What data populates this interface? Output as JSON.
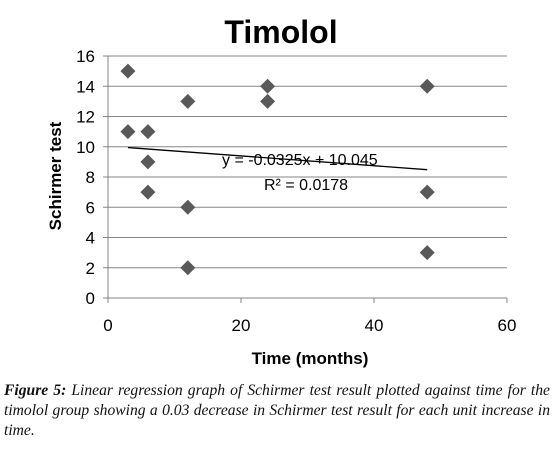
{
  "chart_data": {
    "type": "scatter",
    "title": "Timolol",
    "xlabel": "Time (months)",
    "ylabel": "Schirmer  test",
    "xlim": [
      0,
      60
    ],
    "ylim": [
      0,
      16
    ],
    "x_ticks": [
      0,
      20,
      40,
      60
    ],
    "y_ticks": [
      0,
      2,
      4,
      6,
      8,
      10,
      12,
      14,
      16
    ],
    "grid": "horizontal",
    "legend": "none",
    "marker": "diamond",
    "marker_color": "#595959",
    "x": [
      3,
      3,
      6,
      6,
      6,
      12,
      12,
      12,
      24,
      24,
      48,
      48,
      48
    ],
    "y": [
      15,
      11,
      11,
      9,
      7,
      13,
      6,
      2,
      14,
      13,
      14,
      7,
      3
    ],
    "trendline": {
      "slope": -0.0325,
      "intercept": 10.045,
      "x_range": [
        3,
        48
      ],
      "equation": "y = -0.0325x + 10.045",
      "r_squared": "R² = 0.0178"
    }
  },
  "caption": {
    "label": "Figure 5:",
    "text": " Linear regression graph of Schirmer test result plotted against time for the timolol group showing a 0.03 decrease in Schirmer test result for each unit increase in time."
  }
}
